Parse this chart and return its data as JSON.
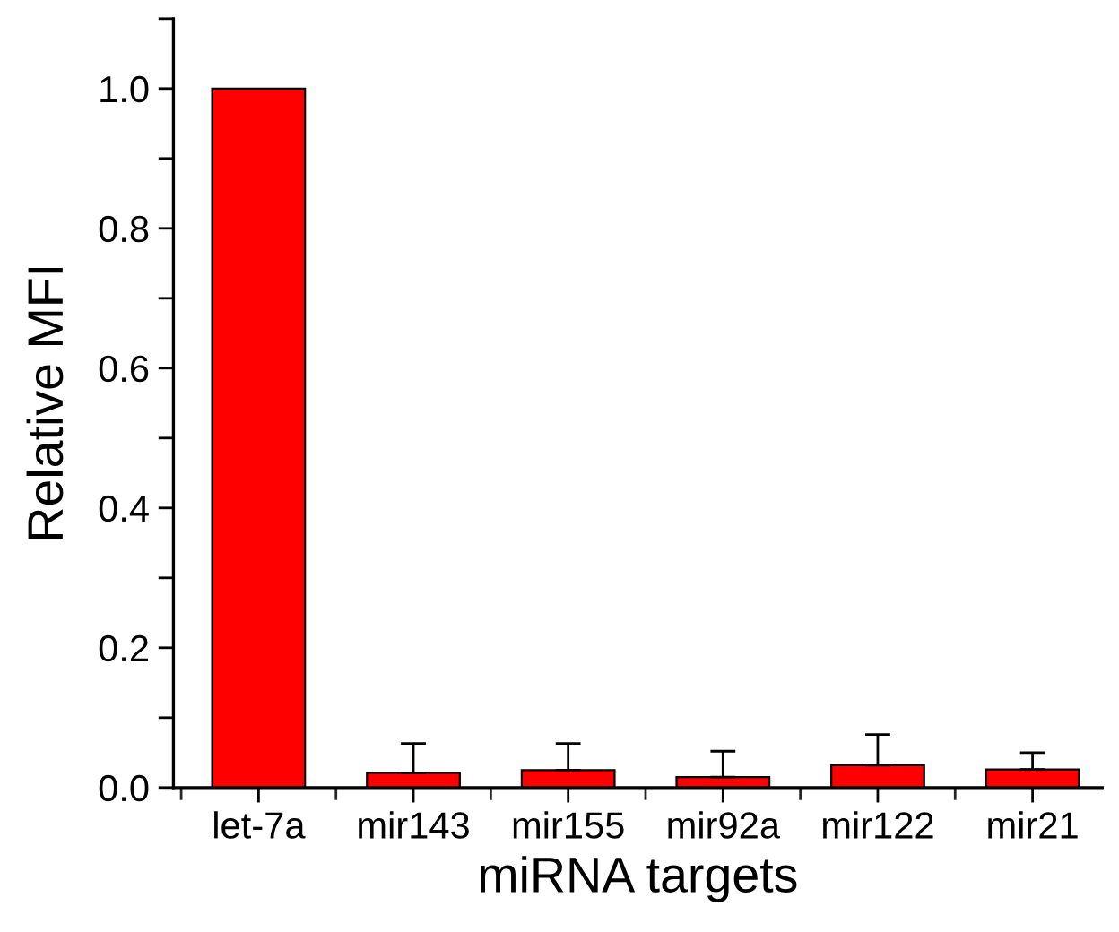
{
  "chart_data": {
    "type": "bar",
    "xlabel": "miRNA targets",
    "ylabel": "Relative MFI",
    "categories": [
      "let-7a",
      "mir143",
      "mir155",
      "mir92a",
      "mir122",
      "mir21"
    ],
    "values": [
      1.0,
      0.021,
      0.025,
      0.015,
      0.032,
      0.026
    ],
    "errors": [
      null,
      [
        0.021,
        0.063
      ],
      [
        0.025,
        0.063
      ],
      [
        0.015,
        0.052
      ],
      [
        0.032,
        0.076
      ],
      [
        0.026,
        0.05
      ]
    ],
    "color": "#ff0000",
    "ylim": [
      0,
      1.1
    ],
    "yticks": [
      {
        "value": 0,
        "label": "0.0"
      },
      {
        "value": 0.1,
        "label": null
      },
      0.2,
      {
        "value": 0.3,
        "label": null
      },
      0.4,
      {
        "value": 0.5,
        "label": null
      },
      0.6,
      {
        "value": 0.7,
        "label": null
      },
      0.8,
      {
        "value": 0.9,
        "label": null
      },
      {
        "value": 1,
        "label": "1.0"
      },
      {
        "value": 1.1,
        "label": null
      }
    ],
    "grid": false,
    "legend": false
  }
}
